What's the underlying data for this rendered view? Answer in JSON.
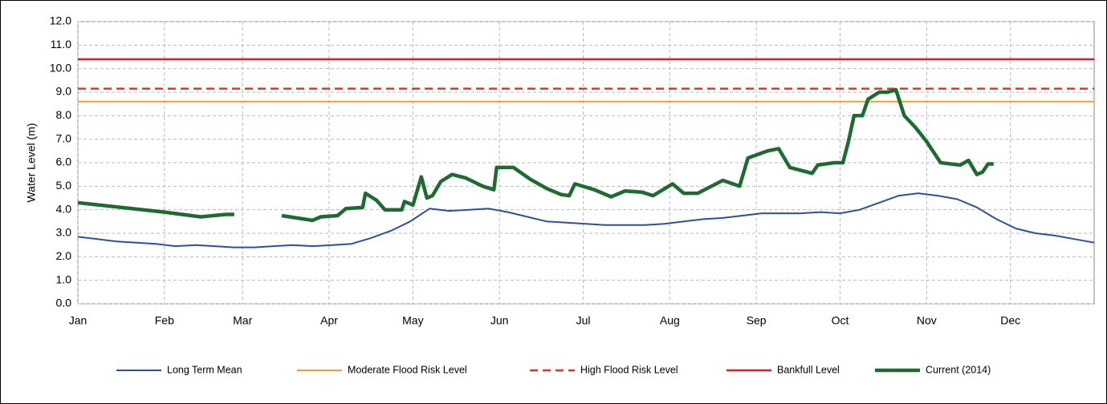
{
  "chart_data": {
    "type": "line",
    "y_label": "Water Level (m)",
    "xlim": [
      1,
      365
    ],
    "ylim": [
      0,
      12
    ],
    "grid": true,
    "legend": "bottom",
    "xticks": [
      {
        "value": 1,
        "label": "Jan"
      },
      {
        "value": 32,
        "label": "Feb"
      },
      {
        "value": 60,
        "label": "Mar"
      },
      {
        "value": 91,
        "label": "Apr"
      },
      {
        "value": 121,
        "label": "May"
      },
      {
        "value": 152,
        "label": "Jun"
      },
      {
        "value": 182,
        "label": "Jul"
      },
      {
        "value": 213,
        "label": "Aug"
      },
      {
        "value": 244,
        "label": "Sep"
      },
      {
        "value": 274,
        "label": "Oct"
      },
      {
        "value": 305,
        "label": "Nov"
      },
      {
        "value": 335,
        "label": "Dec"
      }
    ],
    "yticks": [
      {
        "value": 0,
        "label": "0.0"
      },
      {
        "value": 1,
        "label": "1.0"
      },
      {
        "value": 2,
        "label": "2.0"
      },
      {
        "value": 3,
        "label": "3.0"
      },
      {
        "value": 4,
        "label": "4.0"
      },
      {
        "value": 5,
        "label": "5.0"
      },
      {
        "value": 6,
        "label": "6.0"
      },
      {
        "value": 7,
        "label": "7.0"
      },
      {
        "value": 8,
        "label": "8.0"
      },
      {
        "value": 9,
        "label": "9.0"
      },
      {
        "value": 10,
        "label": "10.0"
      },
      {
        "value": 11,
        "label": "11.0"
      },
      {
        "value": 12,
        "label": "12.0"
      }
    ],
    "series": [
      {
        "name": "Long Term Mean",
        "color": "#2e4ea3",
        "x": [
          1,
          8,
          15,
          22,
          29,
          36,
          43,
          50,
          57,
          64,
          71,
          78,
          85,
          92,
          99,
          106,
          113,
          120,
          127,
          134,
          141,
          148,
          155,
          162,
          169,
          176,
          183,
          190,
          197,
          204,
          211,
          218,
          225,
          232,
          239,
          246,
          253,
          260,
          267,
          274,
          281,
          288,
          295,
          302,
          309,
          316,
          323,
          330,
          337,
          344,
          351,
          358,
          365
        ],
        "values": [
          2.85,
          2.75,
          2.65,
          2.6,
          2.55,
          2.45,
          2.5,
          2.45,
          2.4,
          2.4,
          2.45,
          2.5,
          2.45,
          2.5,
          2.55,
          2.8,
          3.1,
          3.5,
          4.05,
          3.95,
          4.0,
          4.05,
          3.9,
          3.7,
          3.5,
          3.45,
          3.4,
          3.35,
          3.35,
          3.35,
          3.4,
          3.5,
          3.6,
          3.65,
          3.75,
          3.85,
          3.85,
          3.85,
          3.9,
          3.85,
          4.0,
          4.3,
          4.6,
          4.7,
          4.6,
          4.45,
          4.1,
          3.6,
          3.2,
          3.0,
          2.9,
          2.75,
          2.6
        ]
      },
      {
        "name": "Moderate Flood Risk Level",
        "color": "#f0a030",
        "x": [
          1,
          365
        ],
        "values": [
          8.6,
          8.6
        ]
      },
      {
        "name": "High Flood Risk Level",
        "color": "#e8302a",
        "dashed": true,
        "x": [
          1,
          365
        ],
        "values": [
          9.15,
          9.15
        ]
      },
      {
        "name": "Bankfull Level",
        "color": "#e0201e",
        "x": [
          1,
          365
        ],
        "values": [
          10.4,
          10.4
        ]
      },
      {
        "name": "Current (2014)",
        "color": "#1e6b32",
        "x": [
          1,
          32,
          45,
          54,
          57,
          59,
          74,
          85,
          88,
          94,
          97,
          103,
          104,
          108,
          111,
          117,
          118,
          121,
          124,
          126,
          128,
          131,
          135,
          140,
          146,
          150,
          151,
          157,
          163,
          169,
          174,
          177,
          179,
          186,
          192,
          197,
          203,
          207,
          214,
          218,
          223,
          232,
          238,
          241,
          248,
          252,
          256,
          264,
          266,
          272,
          275,
          277,
          279,
          282,
          284,
          288,
          291,
          294,
          297,
          301,
          305,
          310,
          317,
          320,
          323,
          325,
          327,
          329
        ],
        "values": [
          4.3,
          3.9,
          3.7,
          3.8,
          3.8,
          null,
          3.75,
          3.55,
          3.7,
          3.75,
          4.05,
          4.1,
          4.7,
          4.4,
          4.0,
          4.0,
          4.35,
          4.2,
          5.4,
          4.5,
          4.6,
          5.2,
          5.5,
          5.35,
          5.0,
          4.85,
          5.8,
          5.8,
          5.3,
          4.9,
          4.65,
          4.6,
          5.1,
          4.85,
          4.55,
          4.8,
          4.75,
          4.6,
          5.1,
          4.7,
          4.7,
          5.25,
          5.0,
          6.2,
          6.5,
          6.6,
          5.8,
          5.55,
          5.9,
          6.0,
          6.0,
          6.9,
          8.0,
          8.0,
          8.7,
          9.0,
          9.0,
          9.1,
          8.0,
          7.5,
          6.9,
          6.0,
          5.9,
          6.1,
          5.5,
          5.6,
          5.95,
          5.95
        ]
      }
    ]
  }
}
